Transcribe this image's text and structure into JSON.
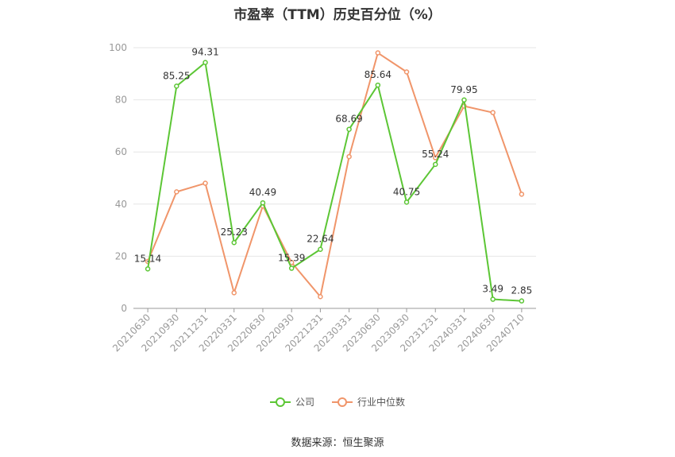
{
  "chart_data": {
    "type": "line",
    "title": "市盈率（TTM）历史百分位（%）",
    "categories": [
      "20210630",
      "20210930",
      "20211231",
      "20220331",
      "20220630",
      "20220930",
      "20221231",
      "20230331",
      "20230630",
      "20230930",
      "20231231",
      "20240331",
      "20240630",
      "20240710"
    ],
    "ylim": [
      0,
      100
    ],
    "yticks": [
      0,
      20,
      40,
      60,
      80,
      100
    ],
    "grid": true,
    "legend_position": "bottom",
    "series": [
      {
        "name": "公司",
        "color": "#5cc635",
        "values": [
          15.14,
          85.25,
          94.31,
          25.23,
          40.49,
          15.39,
          22.64,
          68.69,
          85.64,
          40.75,
          55.24,
          79.95,
          3.49,
          2.85
        ],
        "labels": [
          "15.14",
          "85.25",
          "94.31",
          "25.23",
          "40.49",
          "15.39",
          "22.64",
          "68.69",
          "85.64",
          "40.75",
          "55.24",
          "79.95",
          "3.49",
          "2.85"
        ]
      },
      {
        "name": "行业中位数",
        "color": "#f0956a",
        "values": [
          18,
          44.7,
          48,
          6,
          39.3,
          17.6,
          4.5,
          58.2,
          98,
          90.7,
          57.8,
          77.6,
          75.1,
          43.8
        ]
      }
    ]
  },
  "source": "数据来源：恒生聚源"
}
